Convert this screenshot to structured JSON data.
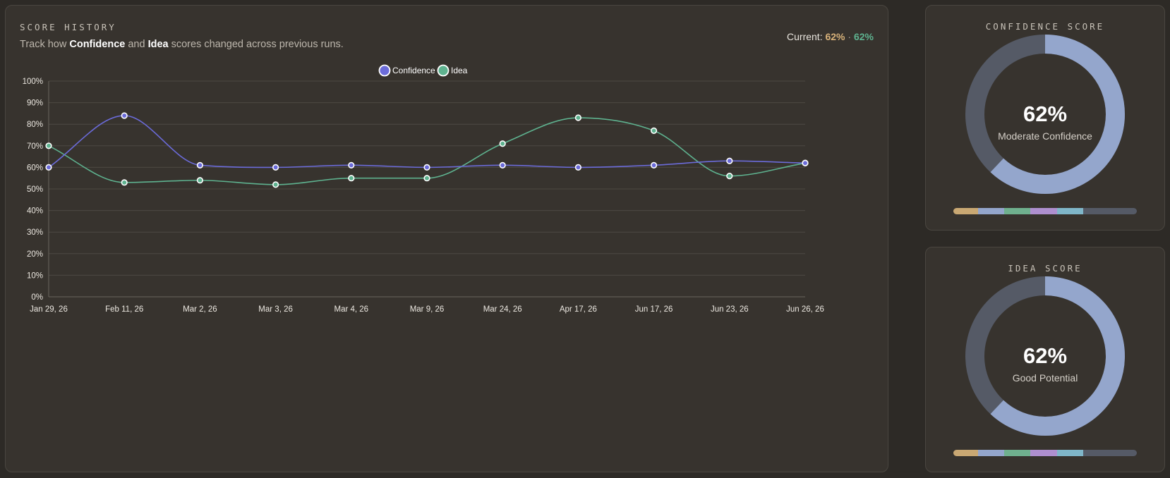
{
  "history": {
    "heading": "SCORE HISTORY",
    "subtitle": {
      "pre": "Track how ",
      "confidence": "Confidence",
      "mid": " and ",
      "idea": "Idea",
      "post": " scores changed across previous runs."
    },
    "current": {
      "label": "Current: ",
      "confidence": "62%",
      "separator": " · ",
      "idea": "62%"
    }
  },
  "chart_data": {
    "type": "line",
    "x": [
      "Jan 29, 26",
      "Feb 11, 26",
      "Mar 2, 26",
      "Mar 3, 26",
      "Mar 4, 26",
      "Mar 9, 26",
      "Mar 24, 26",
      "Apr 17, 26",
      "Jun 17, 26",
      "Jun 23, 26",
      "Jun 26, 26"
    ],
    "series": [
      {
        "name": "Confidence",
        "color": "#6b6bd9",
        "values": [
          60,
          84,
          61,
          60,
          61,
          60,
          61,
          60,
          61,
          63,
          62
        ]
      },
      {
        "name": "Idea",
        "color": "#5eb28f",
        "values": [
          70,
          53,
          54,
          52,
          55,
          55,
          71,
          83,
          77,
          56,
          62
        ]
      }
    ],
    "ylim": [
      0,
      100
    ],
    "yticks": [
      "0%",
      "10%",
      "20%",
      "30%",
      "40%",
      "50%",
      "60%",
      "70%",
      "80%",
      "90%",
      "100%"
    ],
    "legend": "top-center",
    "grid": true,
    "smooth": true
  },
  "gauges": [
    {
      "id": "confidence",
      "heading": "CONFIDENCE SCORE",
      "value": "62%",
      "fraction": 0.62,
      "caption": "Moderate Confidence"
    },
    {
      "id": "idea",
      "heading": "IDEA SCORE",
      "value": "62%",
      "fraction": 0.62,
      "caption": "Good Potential"
    }
  ],
  "colors": {
    "gauge_fill": "#94a6cc",
    "gauge_track": "#555a66",
    "segments": [
      "#c9a873",
      "#94a6cc",
      "#6fb08e",
      "#ae8fcf",
      "#7fb6c9",
      "#555a66"
    ]
  }
}
